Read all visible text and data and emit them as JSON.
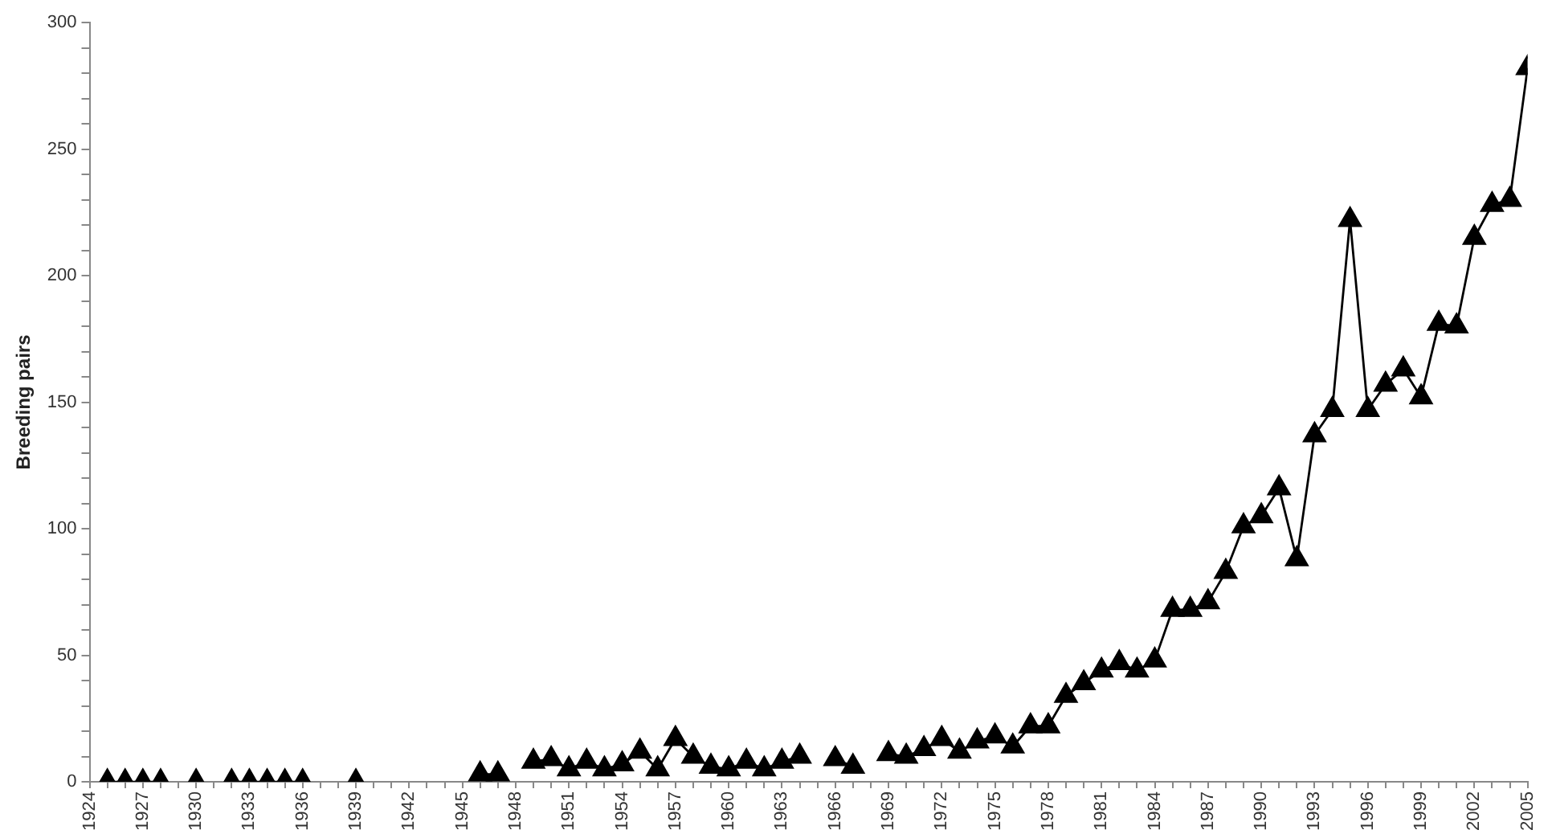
{
  "chart_data": {
    "type": "line",
    "ylabel": "Breeding pairs",
    "x": [
      1925,
      1926,
      1927,
      1928,
      1929,
      1930,
      1931,
      1932,
      1933,
      1934,
      1935,
      1936,
      1937,
      1938,
      1939,
      1940,
      1945,
      1946,
      1947,
      1948,
      1949,
      1950,
      1951,
      1952,
      1953,
      1954,
      1955,
      1956,
      1957,
      1958,
      1959,
      1960,
      1961,
      1962,
      1963,
      1964,
      1965,
      1966,
      1967,
      1968,
      1969,
      1970,
      1971,
      1972,
      1973,
      1974,
      1975,
      1976,
      1977,
      1978,
      1979,
      1980,
      1981,
      1982,
      1983,
      1984,
      1985,
      1986,
      1987,
      1988,
      1989,
      1990,
      1991,
      1992,
      1993,
      1994,
      1995,
      1996,
      1997,
      1998,
      1999,
      2000,
      2001,
      2002,
      2003,
      2004,
      2005
    ],
    "series": [
      {
        "color": "#000000",
        "values": [
          0,
          0,
          0,
          0,
          null,
          0,
          null,
          0,
          0,
          0,
          0,
          0,
          null,
          null,
          0,
          null,
          null,
          3,
          3,
          null,
          8,
          9,
          5,
          8,
          5,
          7,
          12,
          5,
          17,
          10,
          6,
          5,
          8,
          5,
          8,
          10,
          null,
          9,
          6,
          null,
          11,
          10,
          13,
          17,
          12,
          16,
          18,
          14,
          22,
          22,
          34,
          39,
          44,
          47,
          44,
          48,
          68,
          68,
          71,
          83,
          101,
          105,
          116,
          88,
          137,
          147,
          222,
          147,
          157,
          163,
          152,
          181,
          180,
          215,
          228,
          230,
          282
        ]
      }
    ],
    "xlim": [
      1924,
      2005
    ],
    "xticks": [
      1924,
      {
        "value": 1925,
        "label": null
      },
      {
        "value": 1926,
        "label": null
      },
      1927,
      {
        "value": 1928,
        "label": null
      },
      {
        "value": 1929,
        "label": null
      },
      1930,
      {
        "value": 1931,
        "label": null
      },
      {
        "value": 1932,
        "label": null
      },
      1933,
      {
        "value": 1934,
        "label": null
      },
      {
        "value": 1935,
        "label": null
      },
      1936,
      {
        "value": 1937,
        "label": null
      },
      {
        "value": 1938,
        "label": null
      },
      1939,
      {
        "value": 1940,
        "label": null
      },
      {
        "value": 1941,
        "label": null
      },
      1942,
      {
        "value": 1943,
        "label": null
      },
      {
        "value": 1944,
        "label": null
      },
      1945,
      {
        "value": 1946,
        "label": null
      },
      {
        "value": 1947,
        "label": null
      },
      1948,
      {
        "value": 1949,
        "label": null
      },
      {
        "value": 1950,
        "label": null
      },
      1951,
      {
        "value": 1952,
        "label": null
      },
      {
        "value": 1953,
        "label": null
      },
      1954,
      {
        "value": 1955,
        "label": null
      },
      {
        "value": 1956,
        "label": null
      },
      1957,
      {
        "value": 1958,
        "label": null
      },
      {
        "value": 1959,
        "label": null
      },
      1960,
      {
        "value": 1961,
        "label": null
      },
      {
        "value": 1962,
        "label": null
      },
      1963,
      {
        "value": 1964,
        "label": null
      },
      {
        "value": 1965,
        "label": null
      },
      1966,
      {
        "value": 1967,
        "label": null
      },
      {
        "value": 1968,
        "label": null
      },
      1969,
      {
        "value": 1970,
        "label": null
      },
      {
        "value": 1971,
        "label": null
      },
      1972,
      {
        "value": 1973,
        "label": null
      },
      {
        "value": 1974,
        "label": null
      },
      1975,
      {
        "value": 1976,
        "label": null
      },
      {
        "value": 1977,
        "label": null
      },
      1978,
      {
        "value": 1979,
        "label": null
      },
      {
        "value": 1980,
        "label": null
      },
      1981,
      {
        "value": 1982,
        "label": null
      },
      {
        "value": 1983,
        "label": null
      },
      1984,
      {
        "value": 1985,
        "label": null
      },
      {
        "value": 1986,
        "label": null
      },
      1987,
      {
        "value": 1988,
        "label": null
      },
      {
        "value": 1989,
        "label": null
      },
      1990,
      {
        "value": 1991,
        "label": null
      },
      {
        "value": 1992,
        "label": null
      },
      1993,
      {
        "value": 1994,
        "label": null
      },
      {
        "value": 1995,
        "label": null
      },
      1996,
      {
        "value": 1997,
        "label": null
      },
      {
        "value": 1998,
        "label": null
      },
      1999,
      {
        "value": 2000,
        "label": null
      },
      {
        "value": 2001,
        "label": null
      },
      2002,
      {
        "value": 2003,
        "label": null
      },
      {
        "value": 2004,
        "label": null
      },
      2005
    ],
    "ylim": [
      0,
      300
    ],
    "yticks": [
      0,
      {
        "value": 10,
        "label": null
      },
      {
        "value": 20,
        "label": null
      },
      {
        "value": 30,
        "label": null
      },
      {
        "value": 40,
        "label": null
      },
      50,
      {
        "value": 60,
        "label": null
      },
      {
        "value": 70,
        "label": null
      },
      {
        "value": 80,
        "label": null
      },
      {
        "value": 90,
        "label": null
      },
      100,
      {
        "value": 110,
        "label": null
      },
      {
        "value": 120,
        "label": null
      },
      {
        "value": 130,
        "label": null
      },
      {
        "value": 140,
        "label": null
      },
      150,
      {
        "value": 160,
        "label": null
      },
      {
        "value": 170,
        "label": null
      },
      {
        "value": 180,
        "label": null
      },
      {
        "value": 190,
        "label": null
      },
      200,
      {
        "value": 210,
        "label": null
      },
      {
        "value": 220,
        "label": null
      },
      {
        "value": 230,
        "label": null
      },
      {
        "value": 240,
        "label": null
      },
      250,
      {
        "value": 260,
        "label": null
      },
      {
        "value": 270,
        "label": null
      },
      {
        "value": 280,
        "label": null
      },
      {
        "value": 290,
        "label": null
      },
      300
    ],
    "grid": false,
    "legend": false,
    "marker": "triangle",
    "line_style": "solid"
  }
}
